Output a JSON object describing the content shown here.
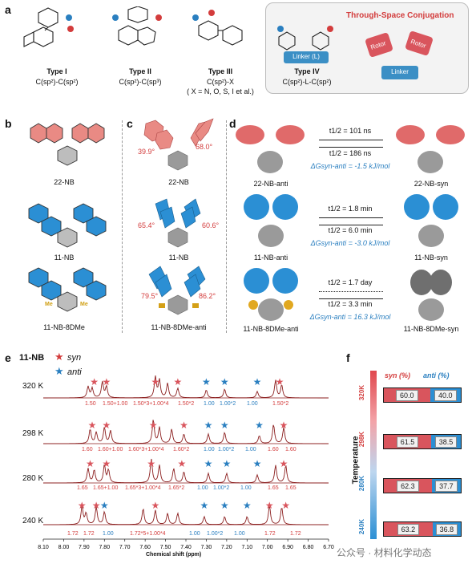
{
  "panel_labels": {
    "a": "a",
    "b": "b",
    "c": "c",
    "d": "d",
    "e": "e",
    "f": "f"
  },
  "types": [
    {
      "name": "Type I",
      "bond": "C(sp²)-C(sp²)"
    },
    {
      "name": "Type II",
      "bond": "C(sp²)-C(sp³)"
    },
    {
      "name": "Type III",
      "bond": "C(sp²)-X",
      "note": "( X = N, O, S, I et al.)"
    },
    {
      "name": "Type IV",
      "bond": "C(sp²)-L-C(sp²)"
    }
  ],
  "type_iv_box": {
    "title": "Through-Space Conjugation",
    "linker_label": "Linker (L)",
    "rotor": "Rotor",
    "linker": "Linker"
  },
  "panel_b": [
    "22-NB",
    "11-NB",
    "11-NB-8DMe"
  ],
  "me_label": "Me",
  "panel_c": [
    {
      "name": "22-NB",
      "left_angle": "39.9°",
      "right_angle": "68.0°"
    },
    {
      "name": "11-NB",
      "left_angle": "65.4°",
      "right_angle": "60.6°"
    },
    {
      "name": "11-NB-8DMe-anti",
      "left_angle": "79.5°",
      "right_angle": "86.2°"
    }
  ],
  "panel_d": [
    {
      "anti": "22-NB-anti",
      "syn": "22-NB-syn",
      "t_fwd": "t1/2 = 101 ns",
      "t_rev": "t1/2 = 186 ns",
      "dG": "ΔGsyn-anti = -1.5 kJ/mol"
    },
    {
      "anti": "11-NB-anti",
      "syn": "11-NB-syn",
      "t_fwd": "t1/2 = 1.8 min",
      "t_rev": "t1/2 = 6.0 min",
      "dG": "ΔGsyn-anti = -3.0 kJ/mol"
    },
    {
      "anti": "11-NB-8DMe-anti",
      "syn": "11-NB-8DMe-syn",
      "t_fwd": "t1/2 = 1.7 day",
      "t_rev": "t1/2 = 3.3 min",
      "dG": "ΔGsyn-anti = 16.3 kJ/mol"
    }
  ],
  "panel_e": {
    "compound": "11-NB",
    "legend_syn": "syn",
    "legend_anti": "anti",
    "xlabel": "Chemical shift (ppm)",
    "ticks": [
      "8.10",
      "8.00",
      "7.90",
      "7.80",
      "7.70",
      "7.60",
      "7.50",
      "7.40",
      "7.30",
      "7.20",
      "7.10",
      "7.00",
      "6.90",
      "6.80",
      "6.70"
    ],
    "spectra": [
      {
        "temp": "320 K",
        "integrals": [
          "1.50",
          "1.50+1.00",
          "1.50*3+1.00*4",
          "1.50*2",
          "1.00",
          "1.00*2",
          "1.00",
          "1.50*2"
        ]
      },
      {
        "temp": "298 K",
        "integrals": [
          "1.60",
          "1.60+1.00",
          "1.60*3+1.00*4",
          "1.60*2",
          "1.00",
          "1.00*2",
          "1.00",
          "1.60",
          "1.60"
        ]
      },
      {
        "temp": "280 K",
        "integrals": [
          "1.65",
          "1.65+1.00",
          "1.65*3+1.00*4",
          "1.65*2",
          "1.00",
          "1.00*2",
          "1.00",
          "1.65",
          "1.65"
        ]
      },
      {
        "temp": "240 K",
        "integrals": [
          "1.72",
          "1.72",
          "1.00",
          "1.72*5+1.00*4",
          "1.00",
          "1.00*2",
          "1.00",
          "1.72",
          "1.72"
        ]
      }
    ]
  },
  "chart_data": {
    "type": "bar",
    "title": "",
    "ylabel": "Temperature",
    "categories": [
      "320K",
      "298K",
      "280K",
      "240K"
    ],
    "series": [
      {
        "name": "syn (%)",
        "values": [
          60.0,
          61.5,
          62.3,
          63.2
        ]
      },
      {
        "name": "anti (%)",
        "values": [
          40.0,
          38.5,
          37.7,
          36.8
        ]
      }
    ],
    "value_labels": [
      [
        "60.0",
        "40.0"
      ],
      [
        "61.5",
        "38.5"
      ],
      [
        "62.3",
        "37.7"
      ],
      [
        "63.2",
        "36.8"
      ]
    ],
    "colors": {
      "syn": "#d9555d",
      "anti": "#2b8fd4"
    }
  },
  "watermark": "公众号 · 材料化学动态"
}
